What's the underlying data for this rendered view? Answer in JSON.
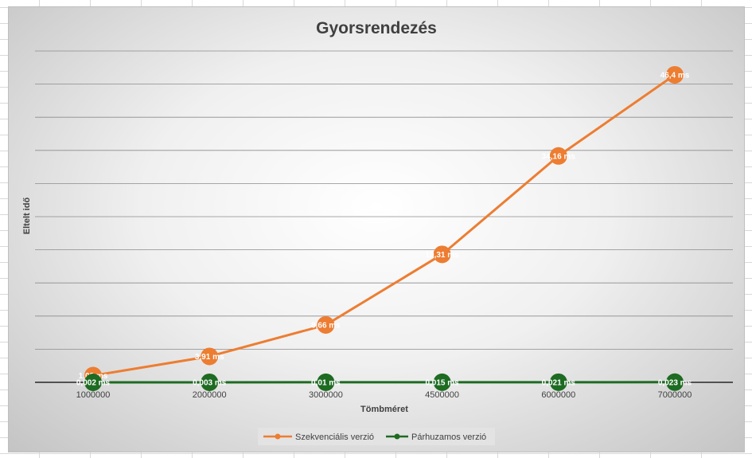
{
  "chart_data": {
    "type": "line",
    "title": "Gyorsrendezés",
    "xlabel": "Tömbméret",
    "ylabel": "Eltelt idő",
    "categories": [
      "1000000",
      "2000000",
      "3000000",
      "4500000",
      "6000000",
      "7000000"
    ],
    "ylim": [
      0,
      50
    ],
    "gridlines": true,
    "legend_position": "bottom",
    "series": [
      {
        "name": "Szekvenciális verzió",
        "color": "#ed7d31",
        "values": [
          1.02,
          3.91,
          8.66,
          19.31,
          34.16,
          46.4
        ],
        "labels": [
          "1,02 ms",
          "3,91 ms",
          "8,66 ms",
          "19,31 ms",
          "34,16 ms",
          "46,4 ms"
        ]
      },
      {
        "name": "Párhuzamos verzió",
        "color": "#1e6b22",
        "values": [
          0.002,
          0.003,
          0.01,
          0.015,
          0.021,
          0.023
        ],
        "labels": [
          "0,002 ms",
          "0,003 ms",
          "0,01 ms",
          "0,015 ms",
          "0,021 ms",
          "0,023 ms"
        ]
      }
    ]
  }
}
